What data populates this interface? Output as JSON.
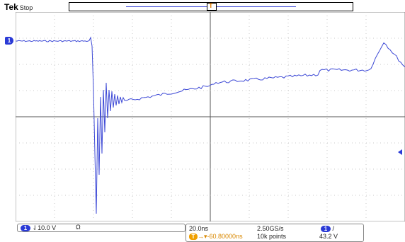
{
  "header": {
    "brand": "Tek",
    "state": "Stop"
  },
  "markers": {
    "trigger_letter": "T",
    "channel_label": "1"
  },
  "channel_readout": {
    "channel": "1",
    "scale": "10.0 V",
    "impedance_symbol": "Ω"
  },
  "acquisition": {
    "timebase": "20.0ns",
    "sample_rate": "2.50GS/s",
    "record_length": "10k points",
    "trigger_position": "-60.80000ns",
    "trigger_channel": "1",
    "trigger_slope_symbol": "/",
    "trigger_level": "43.2 V"
  },
  "colors": {
    "trace": "#3d49d6",
    "trigger": "#f0a000",
    "grid": "#b0b0b0"
  }
}
